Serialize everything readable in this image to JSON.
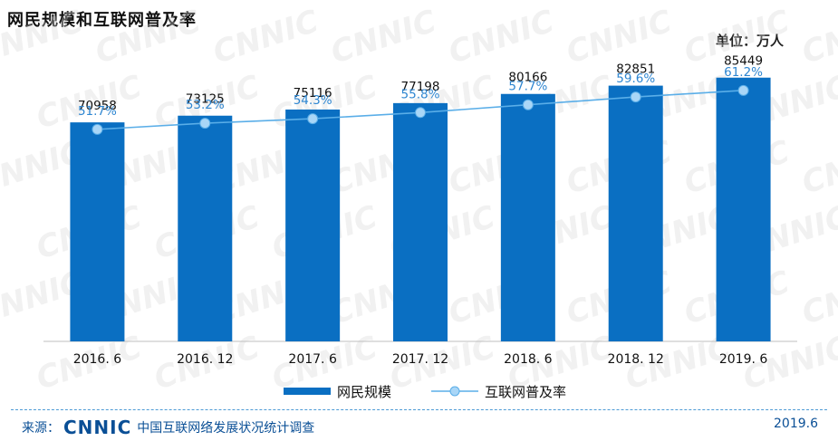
{
  "title": "网民规模和互联网普及率",
  "unit_label": "单位：万人",
  "watermark_text": "CNNIC",
  "colors": {
    "bar": "#0a6fc2",
    "line": "#5aaee8",
    "text_blue": "#0a4f96"
  },
  "chart_data": {
    "type": "bar",
    "categories": [
      "2016. 6",
      "2016. 12",
      "2017. 6",
      "2017. 12",
      "2018. 6",
      "2018. 12",
      "2019. 6"
    ],
    "series": [
      {
        "name": "网民规模",
        "type": "bar",
        "values": [
          70958,
          73125,
          75116,
          77198,
          80166,
          82851,
          85449
        ]
      },
      {
        "name": "互联网普及率",
        "type": "line",
        "values": [
          51.7,
          53.2,
          54.3,
          55.8,
          57.7,
          59.6,
          61.2
        ],
        "labels": [
          "51.7%",
          "53.2%",
          "54.3%",
          "55.8%",
          "57.7%",
          "59.6%",
          "61.2%"
        ]
      }
    ],
    "ylim": [
      0,
      93000
    ],
    "rate_ylim": [
      0,
      70
    ],
    "legend_position": "bottom-center",
    "grid": false
  },
  "footer": {
    "source_prefix": "来源：",
    "logo_text": "CNNIC",
    "source_name": "中国互联网络发展状况统计调查",
    "date": "2019.6"
  }
}
